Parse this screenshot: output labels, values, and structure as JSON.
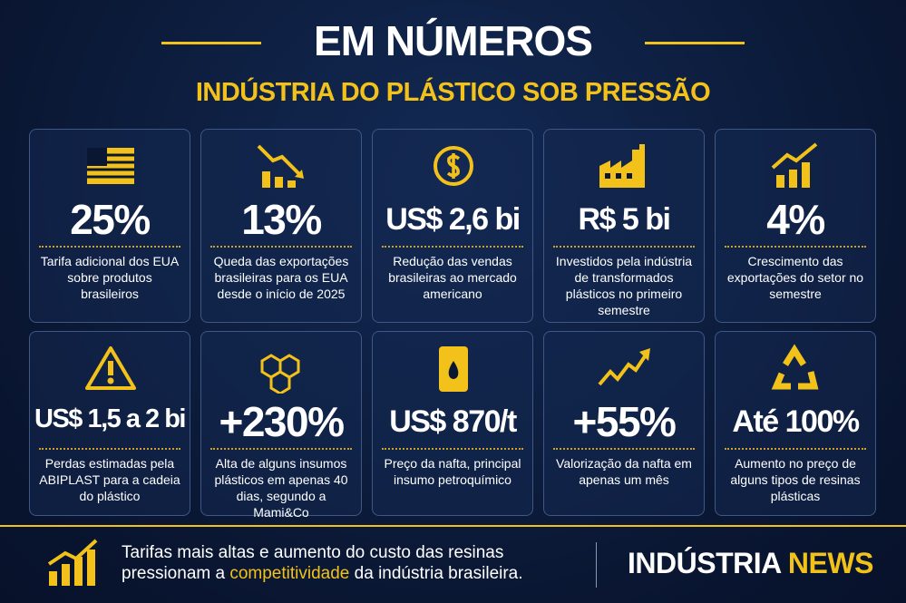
{
  "header": {
    "title": "EM NÚMEROS",
    "subtitle": "INDÚSTRIA DO PLÁSTICO SOB PRESSÃO"
  },
  "cards": [
    {
      "value": "25%",
      "description": "Tarifa adicional dos EUA sobre produtos brasileiros"
    },
    {
      "value": "13%",
      "description": "Queda das exportações brasileiras para os EUA desde o início de 2025"
    },
    {
      "value": "US$ 2,6 bi",
      "description": "Redução das vendas brasileiras ao mercado americano"
    },
    {
      "value": "R$ 5 bi",
      "description": "Investidos pela indústria de transformados plásticos no primeiro semestre"
    },
    {
      "value": "4%",
      "description": "Crescimento das exportações do setor no semestre"
    },
    {
      "value": "US$ 1,5 a 2 bi",
      "description": "Perdas estimadas pela ABIPLAST para a cadeia do plástico"
    },
    {
      "value": "+230%",
      "description": "Alta de alguns insumos plásticos em apenas 40 dias, segundo a Mami&Co"
    },
    {
      "value": "US$ 870/t",
      "description": "Preço da nafta, principal insumo petroquímico"
    },
    {
      "value": "+55%",
      "description": "Valorização da nafta em apenas um mês"
    },
    {
      "value": "Até 100%",
      "description": "Aumento no preço de alguns tipos de resinas plásticas"
    }
  ],
  "footer": {
    "text_before": "Tarifas mais altas e aumento do custo das resinas pressionam a",
    "highlight": "competitividade",
    "text_after": "da indústria brasileira.",
    "brand_main": "INDÚSTRIA",
    "brand_accent": "NEWS"
  }
}
